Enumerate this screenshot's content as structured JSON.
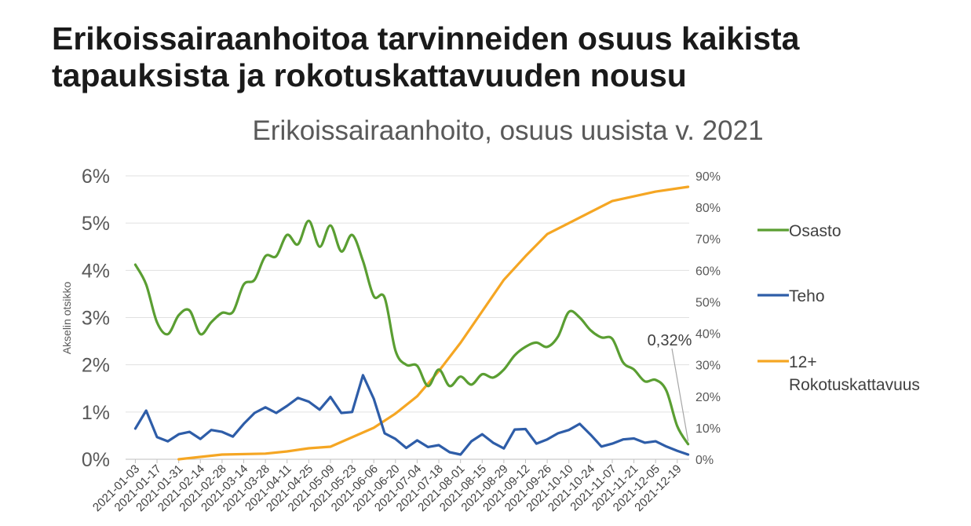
{
  "slide_title": "Erikoissairaanhoitoa tarvinneiden osuus kaikista tapauksista ja rokotuskattavuuden nousu",
  "chart_data": {
    "type": "line",
    "title": "Erikoissairaanhoito, osuus uusista v. 2021",
    "xlabel": "",
    "ylabel": "Akselin otsikko",
    "y_left": {
      "ticks": [
        "0%",
        "1%",
        "2%",
        "3%",
        "4%",
        "5%",
        "6%"
      ],
      "lim": [
        0,
        6
      ]
    },
    "y_right": {
      "ticks": [
        "0%",
        "10%",
        "20%",
        "30%",
        "40%",
        "50%",
        "60%",
        "70%",
        "80%",
        "90%"
      ],
      "lim": [
        0,
        90
      ]
    },
    "x_ticks": [
      "2021-01-03",
      "2021-01-17",
      "2021-01-31",
      "2021-02-14",
      "2021-02-28",
      "2021-03-14",
      "2021-03-28",
      "2021-04-11",
      "2021-04-25",
      "2021-05-09",
      "2021-05-23",
      "2021-06-06",
      "2021-06-20",
      "2021-07-04",
      "2021-07-18",
      "2021-08-01",
      "2021-08-15",
      "2021-08-29",
      "2021-09-12",
      "2021-09-26",
      "2021-10-10",
      "2021-10-24",
      "2021-11-07",
      "2021-11-21",
      "2021-12-05",
      "2021-12-19"
    ],
    "grid": "horizontal",
    "legend_position": "right",
    "annotation": "0,32%",
    "series": [
      {
        "name": "Osasto",
        "axis": "left",
        "color": "#5a9e32",
        "smooth": true,
        "x": [
          "2021-01-03",
          "2021-01-10",
          "2021-01-17",
          "2021-01-24",
          "2021-01-31",
          "2021-02-07",
          "2021-02-14",
          "2021-02-21",
          "2021-02-28",
          "2021-03-07",
          "2021-03-14",
          "2021-03-21",
          "2021-03-28",
          "2021-04-04",
          "2021-04-11",
          "2021-04-18",
          "2021-04-25",
          "2021-05-02",
          "2021-05-09",
          "2021-05-16",
          "2021-05-23",
          "2021-05-30",
          "2021-06-06",
          "2021-06-13",
          "2021-06-20",
          "2021-06-27",
          "2021-07-04",
          "2021-07-11",
          "2021-07-18",
          "2021-07-25",
          "2021-08-01",
          "2021-08-08",
          "2021-08-15",
          "2021-08-22",
          "2021-08-29",
          "2021-09-05",
          "2021-09-12",
          "2021-09-19",
          "2021-09-26",
          "2021-10-03",
          "2021-10-10",
          "2021-10-17",
          "2021-10-24",
          "2021-10-31",
          "2021-11-07",
          "2021-11-14",
          "2021-11-21",
          "2021-11-28",
          "2021-12-05",
          "2021-12-12",
          "2021-12-19",
          "2021-12-26"
        ],
        "values": [
          4.12,
          3.7,
          2.9,
          2.65,
          3.05,
          3.15,
          2.65,
          2.9,
          3.1,
          3.12,
          3.7,
          3.8,
          4.3,
          4.3,
          4.75,
          4.55,
          5.05,
          4.5,
          4.95,
          4.4,
          4.75,
          4.2,
          3.45,
          3.42,
          2.3,
          2.0,
          1.98,
          1.55,
          1.9,
          1.55,
          1.75,
          1.58,
          1.8,
          1.73,
          1.9,
          2.2,
          2.38,
          2.47,
          2.38,
          2.6,
          3.12,
          3.0,
          2.73,
          2.58,
          2.55,
          2.05,
          1.9,
          1.65,
          1.68,
          1.45,
          0.7,
          0.32
        ]
      },
      {
        "name": "Teho",
        "axis": "left",
        "color": "#2e5da8",
        "smooth": false,
        "x": [
          "2021-01-03",
          "2021-01-10",
          "2021-01-17",
          "2021-01-24",
          "2021-01-31",
          "2021-02-07",
          "2021-02-14",
          "2021-02-21",
          "2021-02-28",
          "2021-03-07",
          "2021-03-14",
          "2021-03-21",
          "2021-03-28",
          "2021-04-04",
          "2021-04-11",
          "2021-04-18",
          "2021-04-25",
          "2021-05-02",
          "2021-05-09",
          "2021-05-16",
          "2021-05-23",
          "2021-05-30",
          "2021-06-06",
          "2021-06-13",
          "2021-06-20",
          "2021-06-27",
          "2021-07-04",
          "2021-07-11",
          "2021-07-18",
          "2021-07-25",
          "2021-08-01",
          "2021-08-08",
          "2021-08-15",
          "2021-08-22",
          "2021-08-29",
          "2021-09-05",
          "2021-09-12",
          "2021-09-19",
          "2021-09-26",
          "2021-10-03",
          "2021-10-10",
          "2021-10-17",
          "2021-10-24",
          "2021-10-31",
          "2021-11-07",
          "2021-11-14",
          "2021-11-21",
          "2021-11-28",
          "2021-12-05",
          "2021-12-12",
          "2021-12-19",
          "2021-12-26"
        ],
        "values": [
          0.65,
          1.03,
          0.47,
          0.38,
          0.53,
          0.58,
          0.43,
          0.62,
          0.58,
          0.48,
          0.75,
          0.98,
          1.1,
          0.98,
          1.13,
          1.3,
          1.22,
          1.05,
          1.32,
          0.98,
          1.0,
          1.78,
          1.28,
          0.55,
          0.43,
          0.24,
          0.4,
          0.26,
          0.3,
          0.15,
          0.1,
          0.38,
          0.53,
          0.35,
          0.23,
          0.63,
          0.64,
          0.33,
          0.42,
          0.55,
          0.62,
          0.75,
          0.52,
          0.27,
          0.33,
          0.42,
          0.44,
          0.35,
          0.38,
          0.27,
          0.18,
          0.1
        ]
      },
      {
        "name": "12+ Rokotuskattavuus",
        "axis": "right",
        "color": "#f5a623",
        "smooth": false,
        "x": [
          "2021-01-31",
          "2021-02-28",
          "2021-03-28",
          "2021-04-11",
          "2021-04-25",
          "2021-05-09",
          "2021-06-06",
          "2021-06-20",
          "2021-07-04",
          "2021-07-18",
          "2021-08-01",
          "2021-08-15",
          "2021-08-29",
          "2021-09-12",
          "2021-09-26",
          "2021-10-10",
          "2021-10-24",
          "2021-11-07",
          "2021-11-21",
          "2021-12-05",
          "2021-12-19",
          "2021-12-26"
        ],
        "values": [
          0.0,
          1.5,
          1.8,
          2.5,
          3.5,
          4.0,
          10.0,
          14.5,
          20.0,
          28.0,
          37.0,
          47.0,
          57.0,
          64.5,
          71.5,
          75.0,
          78.5,
          82.0,
          83.5,
          85.0,
          86.0,
          86.5
        ]
      }
    ]
  }
}
